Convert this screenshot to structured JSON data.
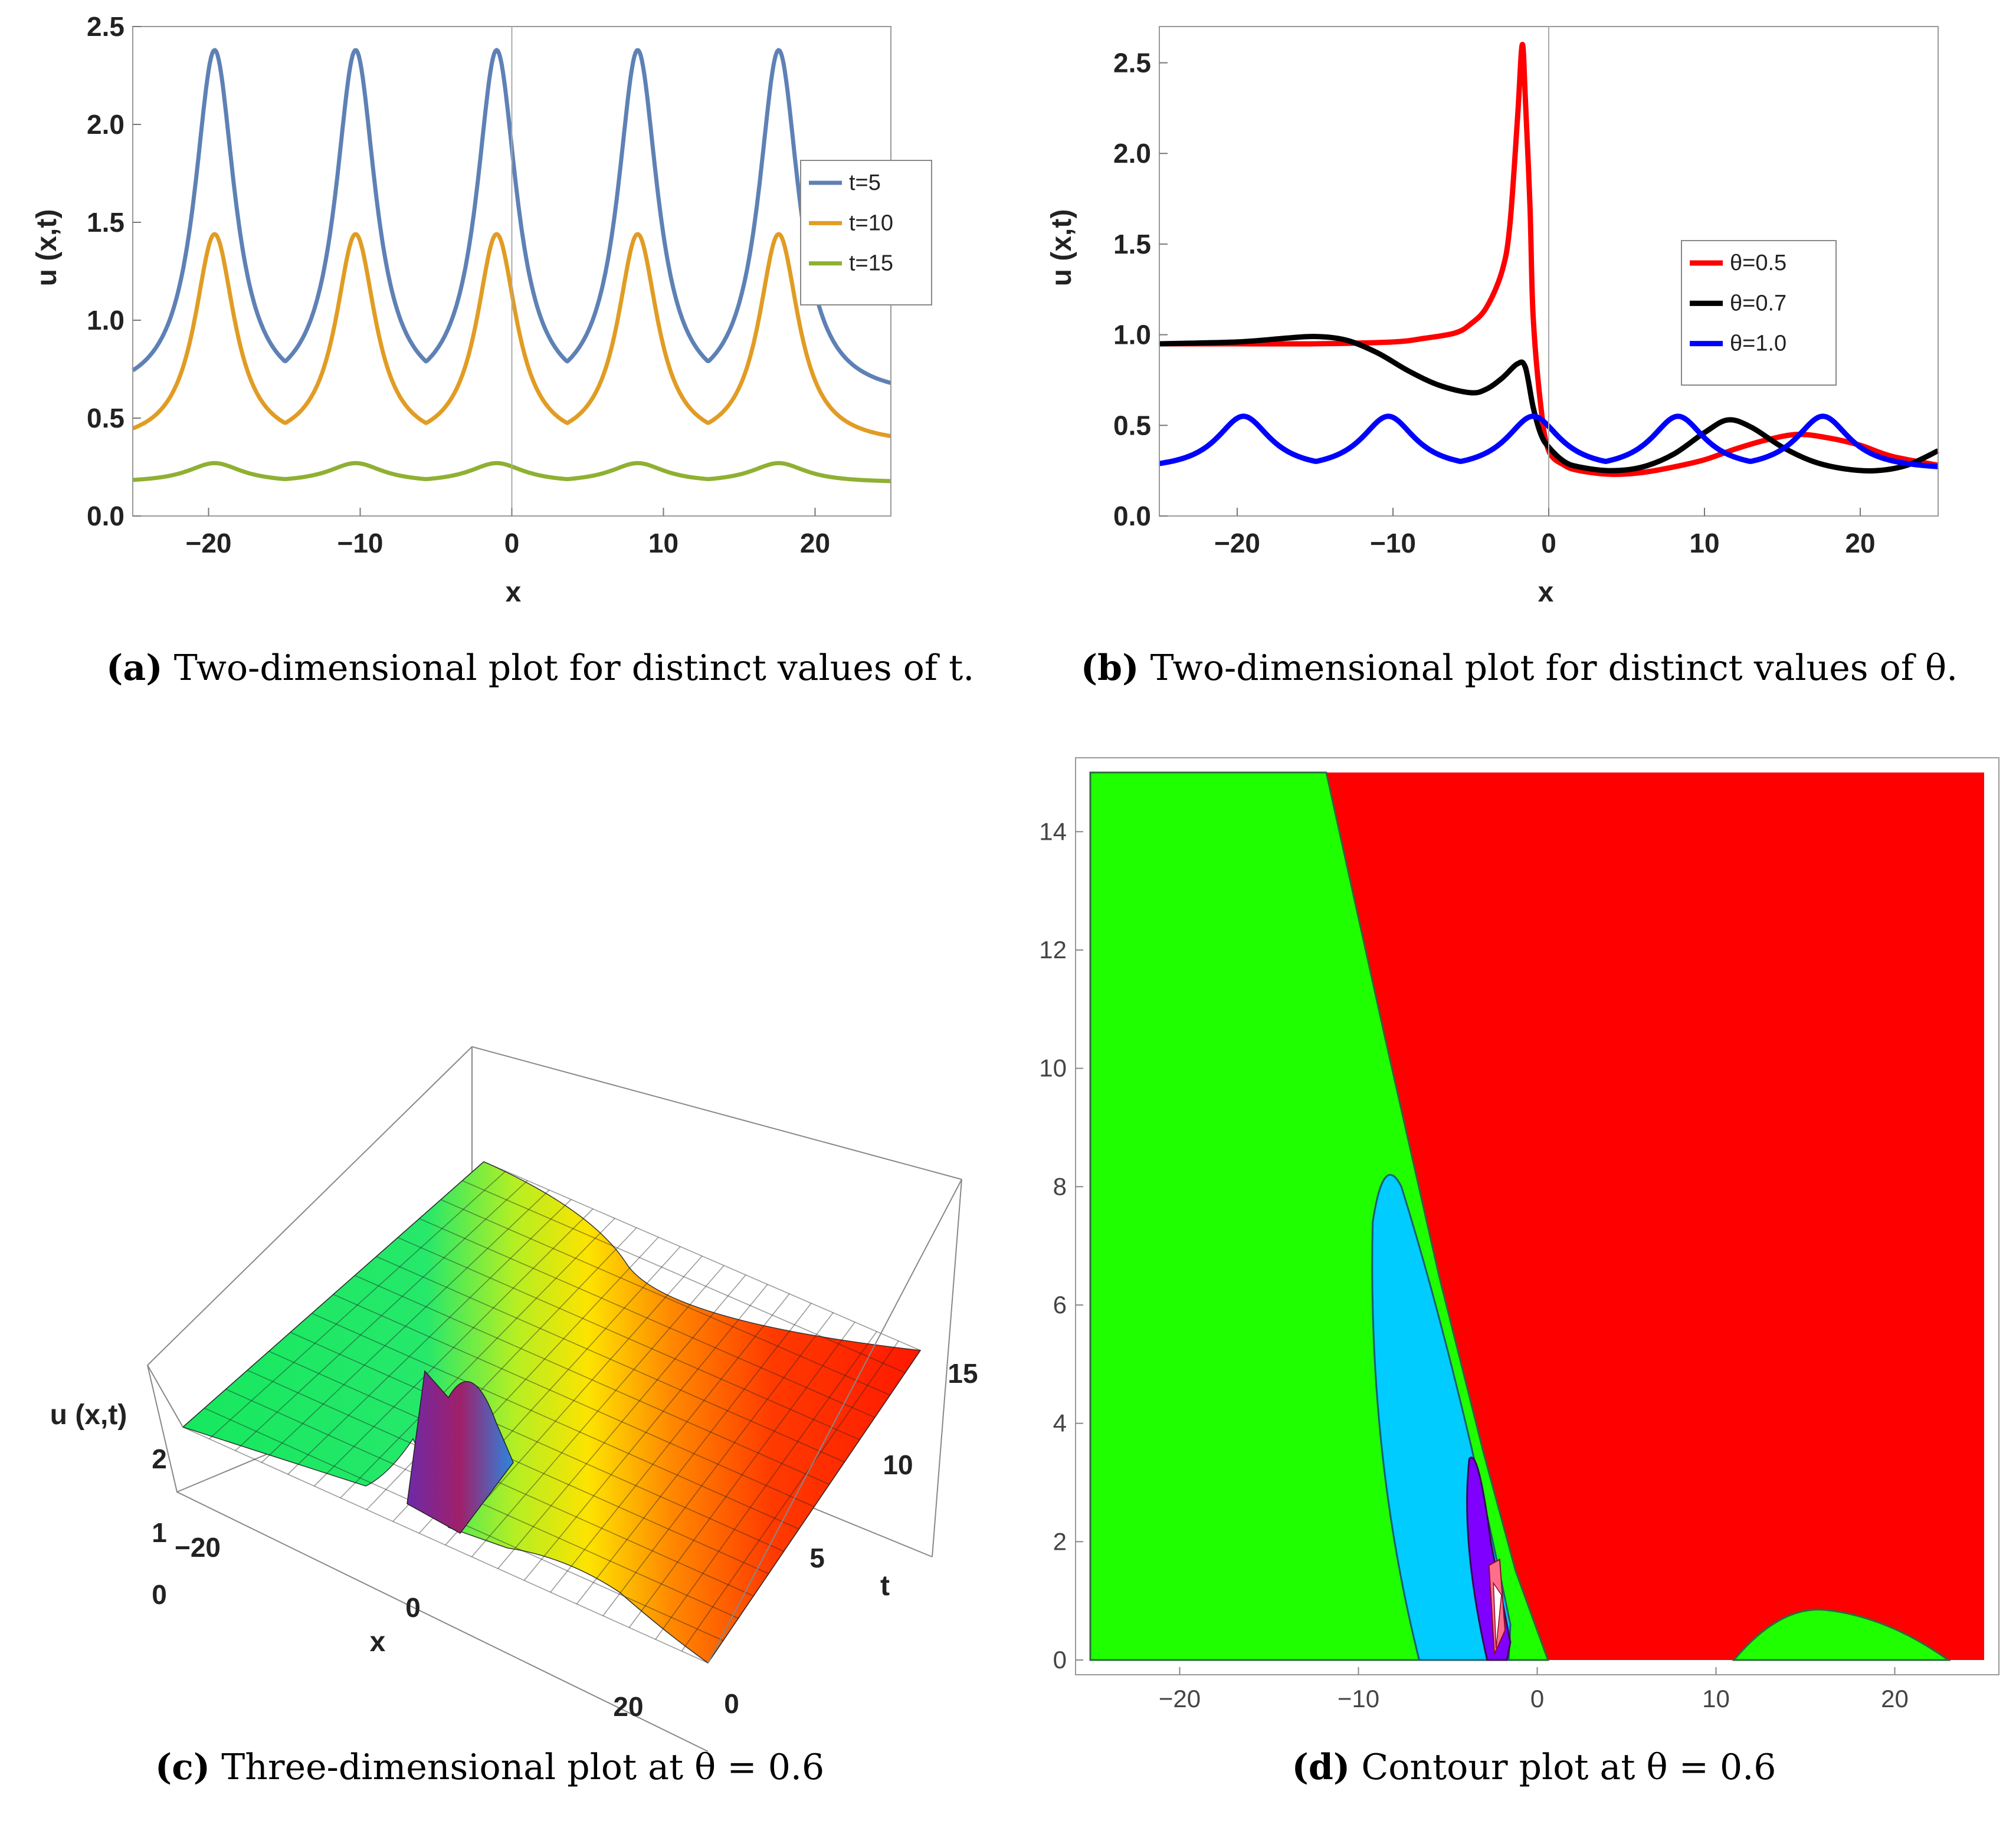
{
  "captions": {
    "a": {
      "letter": "(a)",
      "text": "Two-dimensional plot for distinct values of t."
    },
    "b": {
      "letter": "(b)",
      "text": "Two-dimensional plot for distinct values of θ."
    },
    "c": {
      "letter": "(c)",
      "text": "Three-dimensional plot at θ = 0.6"
    },
    "d": {
      "letter": "(d)",
      "text": "Contour plot at θ = 0.6"
    }
  },
  "chart_data": [
    {
      "id": "a",
      "type": "line",
      "xlabel": "x",
      "ylabel": "u (x,t)",
      "xlim": [
        -25,
        25
      ],
      "ylim": [
        0,
        2.5
      ],
      "xticks": [
        "−20",
        "−10",
        "0",
        "10",
        "20"
      ],
      "yticks": [
        "0.0",
        "0.5",
        "1.0",
        "1.5",
        "2.0",
        "2.5"
      ],
      "legend_position": "right",
      "series": [
        {
          "name": "t=5",
          "color": "#5e81b5",
          "base": 0.6,
          "peak": 2.38,
          "width": 1.6,
          "peaks_x": [
            -19.6,
            -10.3,
            -1.0,
            8.3,
            17.6
          ]
        },
        {
          "name": "t=10",
          "color": "#e19c24",
          "base": 0.36,
          "peak": 1.44,
          "width": 1.6,
          "peaks_x": [
            -19.6,
            -10.3,
            -1.0,
            8.3,
            17.6
          ]
        },
        {
          "name": "t=15",
          "color": "#8fb032",
          "base": 0.17,
          "peak": 0.27,
          "width": 2.2,
          "peaks_x": [
            -19.6,
            -10.3,
            -1.0,
            8.3,
            17.6
          ]
        }
      ]
    },
    {
      "id": "b",
      "type": "line",
      "xlabel": "x",
      "ylabel": "u (x,t)",
      "xlim": [
        -25,
        25
      ],
      "ylim": [
        0,
        2.7
      ],
      "xticks": [
        "−20",
        "−10",
        "0",
        "10",
        "20"
      ],
      "yticks": [
        "0.0",
        "0.5",
        "1.0",
        "1.5",
        "2.0",
        "2.5"
      ],
      "legend_position": "right",
      "series": [
        {
          "name": "θ=0.5",
          "color": "#ff0000",
          "x": [
            -25,
            -20,
            -15,
            -10,
            -8,
            -6,
            -5,
            -4,
            -3,
            -2.5,
            -2,
            -1.7,
            -1.5,
            -1.2,
            -1,
            -0.5,
            0,
            1,
            2,
            4,
            6,
            8,
            10,
            12,
            14,
            16,
            18,
            20,
            22,
            25
          ],
          "y": [
            0.95,
            0.95,
            0.95,
            0.96,
            0.98,
            1.01,
            1.06,
            1.15,
            1.35,
            1.6,
            2.2,
            2.6,
            2.3,
            1.7,
            1.1,
            0.6,
            0.36,
            0.28,
            0.25,
            0.23,
            0.24,
            0.27,
            0.31,
            0.37,
            0.42,
            0.45,
            0.43,
            0.39,
            0.33,
            0.28
          ]
        },
        {
          "name": "θ=0.7",
          "color": "#000000",
          "x": [
            -25,
            -20,
            -17,
            -15,
            -13,
            -11,
            -9,
            -7,
            -5,
            -4,
            -3,
            -2,
            -1.5,
            -1,
            -0.5,
            0,
            1,
            2,
            4,
            6,
            8,
            10,
            11.5,
            13,
            15,
            17,
            19,
            21,
            23,
            25
          ],
          "y": [
            0.95,
            0.96,
            0.98,
            0.99,
            0.97,
            0.9,
            0.8,
            0.72,
            0.68,
            0.7,
            0.76,
            0.84,
            0.82,
            0.6,
            0.45,
            0.38,
            0.3,
            0.27,
            0.25,
            0.27,
            0.34,
            0.46,
            0.53,
            0.49,
            0.38,
            0.3,
            0.26,
            0.25,
            0.28,
            0.36
          ]
        },
        {
          "name": "θ=1.0",
          "color": "#0000ff",
          "base": 0.25,
          "peak": 0.55,
          "width": 2.1,
          "peaks_x": [
            -19.6,
            -10.3,
            -1.0,
            8.3,
            17.6
          ]
        }
      ]
    },
    {
      "id": "c",
      "type": "surface",
      "xlabel": "x",
      "ylabel": "t",
      "zlabel": "u (x,t)",
      "xticks": [
        "−20",
        "0",
        "20"
      ],
      "yticks": [
        "0",
        "5",
        "10",
        "15"
      ],
      "zticks": [
        "0",
        "1",
        "2"
      ]
    },
    {
      "id": "d",
      "type": "contour",
      "xlim": [
        -25,
        25
      ],
      "ylim": [
        0,
        15
      ],
      "xticks": [
        "−20",
        "−10",
        "0",
        "10",
        "20"
      ],
      "yticks": [
        "0",
        "2",
        "4",
        "6",
        "8",
        "10",
        "12",
        "14"
      ],
      "colors": {
        "green": "#1fff00",
        "red": "#ff0000",
        "cyan": "#00ccff",
        "purple": "#7f00ff",
        "pink": "#ff6f8a",
        "white": "#ffffff"
      }
    }
  ]
}
